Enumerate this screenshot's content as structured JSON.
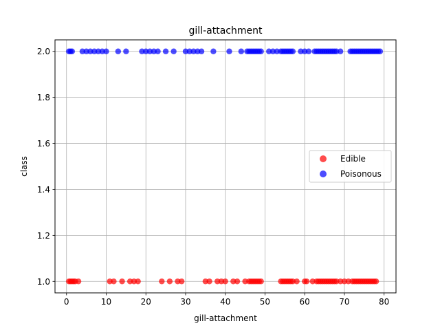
{
  "chart_data": {
    "type": "scatter",
    "title": "gill-attachment",
    "xlabel": "gill-attachment",
    "ylabel": "class",
    "xlim": [
      -2.9,
      83
    ],
    "ylim": [
      0.95,
      2.05
    ],
    "xticks": [
      0,
      10,
      20,
      30,
      40,
      50,
      60,
      70,
      80
    ],
    "yticks": [
      1.0,
      1.2,
      1.4,
      1.6,
      1.8,
      2.0
    ],
    "ytick_labels": [
      "1.0",
      "1.2",
      "1.4",
      "1.6",
      "1.8",
      "2.0"
    ],
    "grid": true,
    "legend_position": "center-right",
    "series": [
      {
        "name": "Edible",
        "color": "#ff0000",
        "y": 1.0,
        "x": [
          0.6,
          1,
          1.4,
          1.8,
          2.2,
          3,
          10.9,
          11.9,
          14,
          16,
          17,
          18,
          24,
          26,
          28,
          29,
          35,
          36,
          38,
          39,
          40,
          42,
          43,
          45,
          46,
          46.5,
          47,
          47.5,
          48,
          48.5,
          49,
          54,
          54.5,
          55,
          55.5,
          56,
          56.5,
          57,
          58,
          60,
          60.5,
          62,
          63,
          63.5,
          64,
          64.5,
          65,
          65.5,
          66,
          66.5,
          67,
          67.5,
          68,
          69,
          70,
          71,
          72,
          72.5,
          73,
          73.5,
          74,
          74.5,
          75,
          75.5,
          76,
          76.5,
          77,
          77.5,
          78
        ]
      },
      {
        "name": "Poisonous",
        "color": "#0000ff",
        "y": 2.0,
        "x": [
          0.6,
          1,
          1.4,
          4,
          5,
          6,
          7,
          8,
          9,
          10,
          13,
          15,
          19,
          20,
          21,
          22,
          23,
          25,
          27,
          30,
          31,
          32,
          33,
          34,
          37,
          41,
          44,
          45.5,
          46,
          46.5,
          47,
          47.5,
          48,
          48.5,
          49,
          51,
          52,
          53,
          54,
          54.5,
          55,
          55.5,
          56,
          56.5,
          57,
          59,
          60,
          61,
          62.5,
          63,
          63.5,
          64,
          64.5,
          65,
          65.5,
          66,
          66.5,
          67,
          67.5,
          68,
          69,
          71.5,
          72,
          72.5,
          73,
          73.5,
          74,
          74.5,
          75,
          75.5,
          76,
          76.5,
          77,
          77.5,
          78,
          78.5,
          79
        ]
      }
    ]
  }
}
